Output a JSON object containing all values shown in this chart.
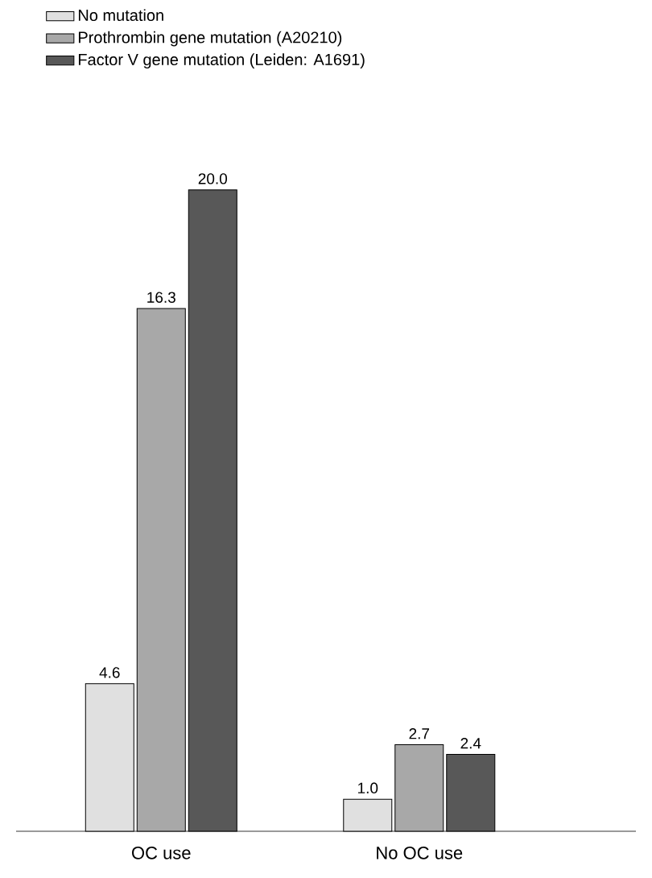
{
  "chart_data": {
    "type": "bar",
    "categories": [
      "OC use",
      "No OC use"
    ],
    "series": [
      {
        "name": "No mutation",
        "color": "#e0e0e0",
        "values": [
          4.6,
          1.0
        ],
        "value_labels": [
          "4.6",
          "1.0"
        ]
      },
      {
        "name": "Prothrombin gene mutation (A20210)",
        "color": "#a8a8a8",
        "values": [
          16.3,
          2.7
        ],
        "value_labels": [
          "16.3",
          "2.7"
        ]
      },
      {
        "name": "Factor V gene mutation (Leiden: A1691)",
        "color": "#585858",
        "values": [
          20.0,
          2.4
        ],
        "value_labels": [
          "20.0",
          "2.4"
        ]
      }
    ],
    "legend": "top left"
  }
}
